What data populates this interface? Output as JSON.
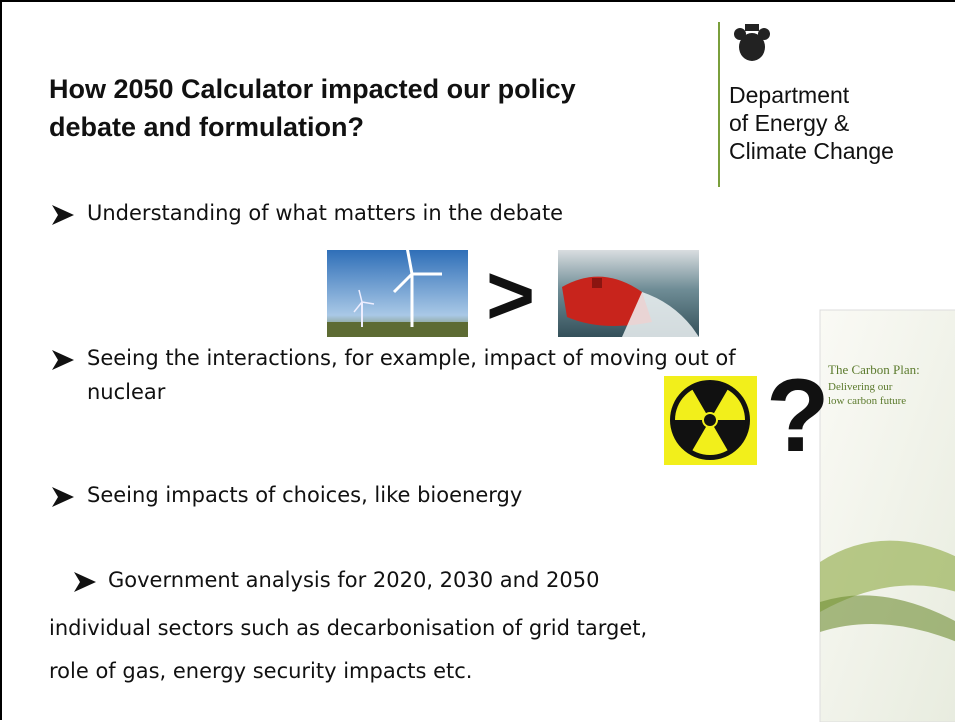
{
  "title": [
    "How 2050 Calculator impacted our policy",
    "debate and formulation?"
  ],
  "logo": {
    "lines": [
      "Department",
      "of Energy &",
      "Climate Change"
    ]
  },
  "bullets": [
    {
      "lines": [
        "Understanding of what matters in the debate"
      ]
    },
    {
      "lines": [
        "Seeing the interactions, for example, impact of moving out of",
        "nuclear"
      ]
    },
    {
      "lines": [
        "Seeing impacts of choices, like bioenergy"
      ]
    },
    {
      "lines": [
        "Government analysis for 2020, 2030 and 2050",
        "individual sectors such as decarbonisation of grid target,",
        "role of gas, energy security impacts etc."
      ]
    }
  ],
  "comparison_symbol": ">",
  "question_symbol": "?",
  "report_cover": {
    "title": "The Carbon Plan:",
    "subtitle": [
      "Delivering our",
      "low carbon future"
    ]
  }
}
